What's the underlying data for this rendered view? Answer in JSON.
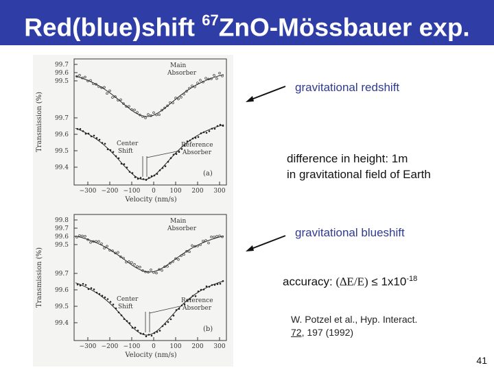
{
  "slide": {
    "title_prefix": "Red(blue)shift ",
    "title_super": "67",
    "title_suffix": "ZnO-Mössbauer exp.",
    "page_number": "41"
  },
  "annotations": {
    "redshift": "gravitational redshift",
    "height_line1": "difference in height: 1m",
    "height_line2": "in gravitational field of Earth",
    "blueshift": "gravitational blueshift",
    "accuracy_prefix": "accuracy: ",
    "accuracy_formula": "(∆E/E)",
    "accuracy_mid": " ≤ 1x10",
    "accuracy_exp": "-18"
  },
  "citation": {
    "line1": "W. Potzel et al., Hyp. Interact.",
    "volume": "72",
    "rest": ", 197 (1992)"
  },
  "figure": {
    "panel_a": {
      "ylabel": "Transmission (%)",
      "xlabel": "Velocity (nm/s)",
      "label": "(a)",
      "main_absorber": [
        "Main",
        "Absorber"
      ],
      "reference_absorber": [
        "Reference",
        "Absorber"
      ],
      "center_shift": [
        "Center",
        "Shift"
      ],
      "upper_ticks": [
        "99.7",
        "99.6",
        "99.5"
      ],
      "lower_ticks": [
        "99.7",
        "99.6",
        "99.5",
        "99.4"
      ],
      "x_ticks": [
        "−300",
        "−200",
        "−100",
        "0",
        "100",
        "200",
        "300"
      ]
    },
    "panel_b": {
      "ylabel": "Transmission (%)",
      "xlabel": "Velocity (nm/s)",
      "label": "(b)",
      "main_absorber": [
        "Main",
        "Absorber"
      ],
      "reference_absorber": [
        "Reference",
        "Absorber"
      ],
      "center_shift": [
        "Center",
        "Shift"
      ],
      "upper_ticks": [
        "99.8",
        "99.7",
        "99.6",
        "99.5"
      ],
      "lower_ticks": [
        "99.7",
        "99.6",
        "99.5",
        "99.4"
      ],
      "x_ticks": [
        "−300",
        "−200",
        "−100",
        "0",
        "100",
        "200",
        "300"
      ]
    }
  }
}
